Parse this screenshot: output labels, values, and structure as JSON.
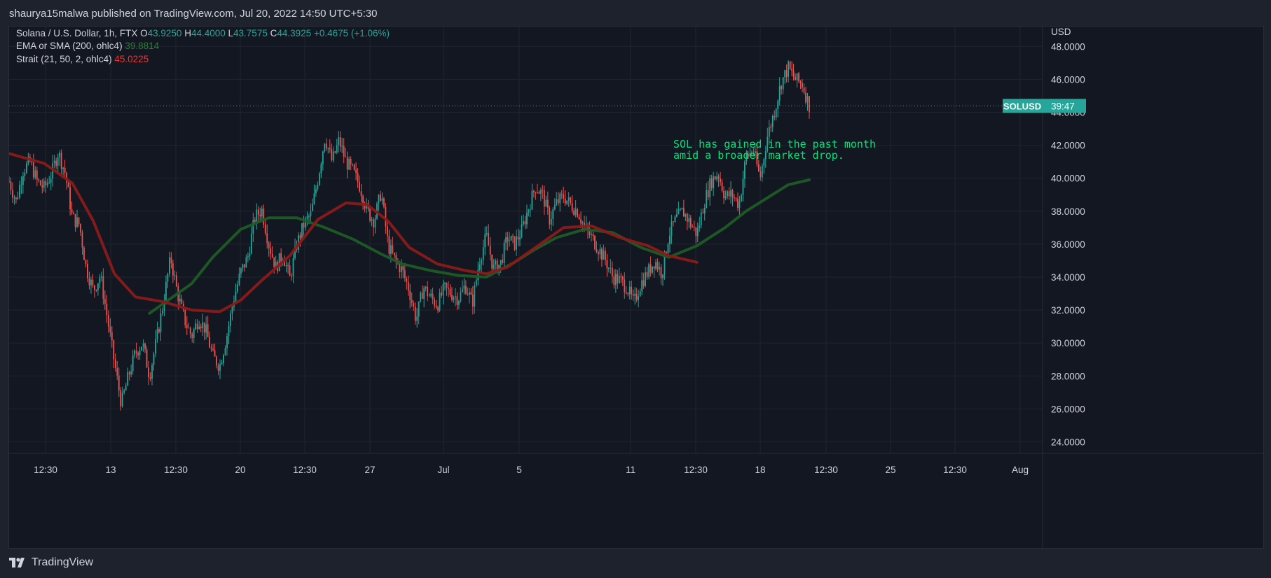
{
  "header": {
    "publisher_line": "shaurya15malwa published on TradingView.com, Jul 20, 2022 14:50 UTC+5:30"
  },
  "legend": {
    "symbol_line": "Solana / U.S. Dollar, 1h, FTX",
    "ohlc": {
      "o_label": "O",
      "o": "43.9250",
      "h_label": "H",
      "h": "44.4000",
      "l_label": "L",
      "l": "43.7575",
      "c_label": "C",
      "c": "44.3925",
      "change": "+0.4675 (+1.06%)"
    },
    "indicators": [
      {
        "label": "EMA or SMA (200, ohlc4)",
        "value": "39.8814",
        "color": "#2e7d32"
      },
      {
        "label": "Strait (21, 50, 2, ohlc4)",
        "value": "45.0225",
        "color": "#e53935"
      }
    ]
  },
  "annotation": {
    "lines": [
      "SOL has gained in the past month",
      "amid a broader market drop."
    ],
    "color": "#00e676"
  },
  "price_tag": {
    "symbol": "SOLUSD",
    "countdown": "39:47",
    "color": "#26a69a"
  },
  "footer": {
    "brand": "TradingView"
  },
  "colors": {
    "up": "#26a69a",
    "down": "#ef5350",
    "ema": "#1e5b25",
    "strait": "#8b1a1a",
    "grid": "#1f2430",
    "axis_text": "#d1d4dc"
  },
  "chart_data": {
    "type": "candlestick",
    "title": "Solana / U.S. Dollar, 1h, FTX",
    "y_axis": {
      "unit": "USD",
      "ticks": [
        "48.0000",
        "46.0000",
        "44.0000",
        "42.0000",
        "40.0000",
        "38.0000",
        "36.0000",
        "34.0000",
        "32.0000",
        "30.0000",
        "28.0000",
        "26.0000",
        "24.0000"
      ],
      "range": [
        23.3,
        49.2
      ]
    },
    "x_axis": {
      "ticks": [
        "12:30",
        "13",
        "12:30",
        "20",
        "12:30",
        "27",
        "Jul",
        "5",
        "11",
        "12:30",
        "18",
        "12:30",
        "25",
        "12:30",
        "Aug"
      ]
    },
    "current_price": 44.39,
    "price_path": [
      [
        0,
        39.8
      ],
      [
        2,
        38.6
      ],
      [
        4,
        40.5
      ],
      [
        6,
        41.0
      ],
      [
        8,
        39.8
      ],
      [
        10,
        39.4
      ],
      [
        12,
        40.2
      ],
      [
        14,
        41.6
      ],
      [
        16,
        40.3
      ],
      [
        18,
        37.6
      ],
      [
        20,
        37.2
      ],
      [
        22,
        34.5
      ],
      [
        24,
        33.2
      ],
      [
        26,
        34.1
      ],
      [
        28,
        31.5
      ],
      [
        30,
        28.8
      ],
      [
        32,
        26.3
      ],
      [
        34,
        28.0
      ],
      [
        36,
        29.4
      ],
      [
        38,
        30.0
      ],
      [
        40,
        28.0
      ],
      [
        42,
        30.2
      ],
      [
        44,
        32.5
      ],
      [
        46,
        35.2
      ],
      [
        48,
        33.0
      ],
      [
        50,
        31.4
      ],
      [
        52,
        30.4
      ],
      [
        54,
        31.5
      ],
      [
        56,
        30.8
      ],
      [
        58,
        29.2
      ],
      [
        60,
        28.6
      ],
      [
        62,
        30.4
      ],
      [
        64,
        32.7
      ],
      [
        66,
        34.3
      ],
      [
        68,
        35.2
      ],
      [
        70,
        37.6
      ],
      [
        72,
        38.1
      ],
      [
        74,
        36.0
      ],
      [
        76,
        34.6
      ],
      [
        78,
        35.4
      ],
      [
        80,
        33.9
      ],
      [
        82,
        36.0
      ],
      [
        84,
        37.2
      ],
      [
        86,
        37.8
      ],
      [
        88,
        40.0
      ],
      [
        90,
        42.5
      ],
      [
        92,
        41.0
      ],
      [
        94,
        42.3
      ],
      [
        96,
        41.0
      ],
      [
        98,
        40.4
      ],
      [
        100,
        39.5
      ],
      [
        102,
        38.0
      ],
      [
        104,
        37.4
      ],
      [
        106,
        39.2
      ],
      [
        108,
        35.9
      ],
      [
        110,
        35.0
      ],
      [
        112,
        34.4
      ],
      [
        114,
        33.2
      ],
      [
        116,
        31.4
      ],
      [
        118,
        33.4
      ],
      [
        120,
        32.8
      ],
      [
        122,
        32.3
      ],
      [
        124,
        33.3
      ],
      [
        126,
        33.0
      ],
      [
        128,
        32.7
      ],
      [
        130,
        33.5
      ],
      [
        132,
        32.4
      ],
      [
        134,
        35.0
      ],
      [
        136,
        36.5
      ],
      [
        138,
        34.5
      ],
      [
        140,
        34.8
      ],
      [
        142,
        36.4
      ],
      [
        144,
        36.0
      ],
      [
        146,
        36.8
      ],
      [
        148,
        38.2
      ],
      [
        150,
        39.5
      ],
      [
        152,
        39.0
      ],
      [
        154,
        37.5
      ],
      [
        156,
        38.5
      ],
      [
        158,
        38.9
      ],
      [
        160,
        38.4
      ],
      [
        162,
        38.0
      ],
      [
        164,
        37.0
      ],
      [
        166,
        36.4
      ],
      [
        168,
        35.7
      ],
      [
        170,
        35.0
      ],
      [
        172,
        34.0
      ],
      [
        174,
        33.8
      ],
      [
        176,
        33.4
      ],
      [
        178,
        32.4
      ],
      [
        180,
        33.6
      ],
      [
        182,
        34.3
      ],
      [
        184,
        35.0
      ],
      [
        186,
        34.2
      ],
      [
        188,
        36.6
      ],
      [
        190,
        37.5
      ],
      [
        192,
        38.0
      ],
      [
        194,
        37.3
      ],
      [
        196,
        36.6
      ],
      [
        198,
        38.5
      ],
      [
        200,
        39.8
      ],
      [
        202,
        40.3
      ],
      [
        204,
        38.9
      ],
      [
        206,
        39.0
      ],
      [
        208,
        38.4
      ],
      [
        210,
        41.3
      ],
      [
        212,
        41.7
      ],
      [
        214,
        40.0
      ],
      [
        216,
        42.5
      ],
      [
        218,
        44.0
      ],
      [
        220,
        45.8
      ],
      [
        222,
        46.7
      ],
      [
        224,
        46.0
      ],
      [
        226,
        45.7
      ],
      [
        228,
        44.4
      ]
    ],
    "series": [
      {
        "name": "EMA or SMA (200, ohlc4)",
        "points": [
          [
            40,
            31.8
          ],
          [
            46,
            32.7
          ],
          [
            52,
            33.6
          ],
          [
            58,
            35.2
          ],
          [
            66,
            36.9
          ],
          [
            74,
            37.6
          ],
          [
            82,
            37.6
          ],
          [
            90,
            37.0
          ],
          [
            98,
            36.3
          ],
          [
            106,
            35.4
          ],
          [
            112,
            34.8
          ],
          [
            120,
            34.4
          ],
          [
            128,
            34.1
          ],
          [
            136,
            34.0
          ],
          [
            144,
            34.9
          ],
          [
            150,
            35.7
          ],
          [
            156,
            36.4
          ],
          [
            164,
            36.9
          ],
          [
            172,
            36.7
          ],
          [
            180,
            35.8
          ],
          [
            188,
            35.2
          ],
          [
            196,
            35.9
          ],
          [
            204,
            37.0
          ],
          [
            210,
            38.0
          ],
          [
            216,
            38.8
          ],
          [
            222,
            39.6
          ],
          [
            228,
            39.9
          ]
        ]
      },
      {
        "name": "Strait (21, 50, 2, ohlc4)",
        "points": [
          [
            0,
            41.5
          ],
          [
            10,
            40.9
          ],
          [
            18,
            39.7
          ],
          [
            24,
            37.4
          ],
          [
            30,
            34.2
          ],
          [
            36,
            32.8
          ],
          [
            44,
            32.5
          ],
          [
            52,
            32.0
          ],
          [
            60,
            31.9
          ],
          [
            66,
            32.6
          ],
          [
            72,
            33.8
          ],
          [
            80,
            35.3
          ],
          [
            88,
            37.5
          ],
          [
            96,
            38.5
          ],
          [
            102,
            38.4
          ],
          [
            108,
            37.4
          ],
          [
            114,
            35.8
          ],
          [
            122,
            34.8
          ],
          [
            130,
            34.4
          ],
          [
            136,
            34.2
          ],
          [
            142,
            34.6
          ],
          [
            150,
            35.8
          ],
          [
            158,
            37.0
          ],
          [
            166,
            37.1
          ],
          [
            174,
            36.4
          ],
          [
            182,
            35.9
          ],
          [
            188,
            35.3
          ],
          [
            196,
            34.9
          ]
        ]
      }
    ]
  }
}
